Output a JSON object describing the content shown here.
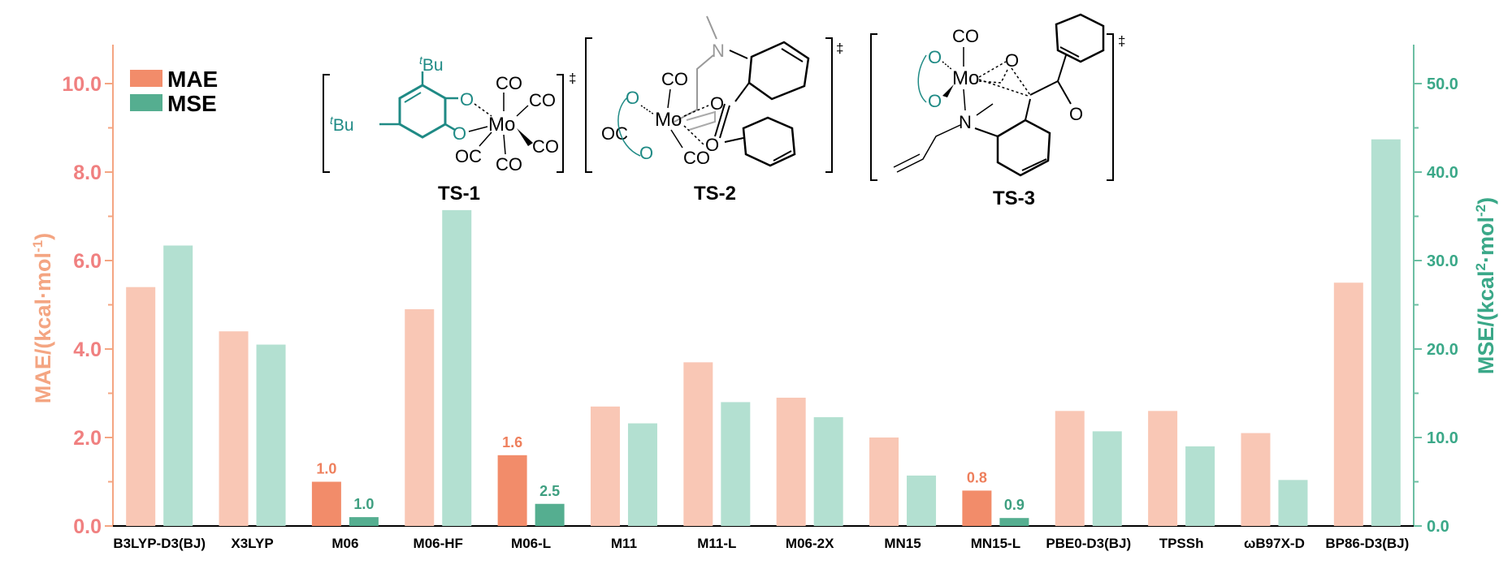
{
  "chart_data": {
    "type": "bar",
    "categories": [
      "B3LYP-D3(BJ)",
      "X3LYP",
      "M06",
      "M06-HF",
      "M06-L",
      "M11",
      "M11-L",
      "M06-2X",
      "MN15",
      "MN15-L",
      "PBE0-D3(BJ)",
      "TPSSh",
      "ωB97X-D",
      "BP86-D3(BJ)"
    ],
    "series": [
      {
        "name": "MAE",
        "axis": "left",
        "values": [
          5.4,
          4.4,
          1.0,
          4.9,
          1.6,
          2.7,
          3.7,
          2.9,
          2.0,
          0.8,
          2.6,
          2.6,
          2.1,
          5.5
        ],
        "highlighted": [
          false,
          false,
          true,
          false,
          true,
          false,
          false,
          false,
          false,
          true,
          false,
          false,
          false,
          false
        ],
        "data_labels": [
          "",
          "",
          "1.0",
          "",
          "1.6",
          "",
          "",
          "",
          "",
          "0.8",
          "",
          "",
          "",
          ""
        ]
      },
      {
        "name": "MSE",
        "axis": "right",
        "values": [
          31.7,
          20.5,
          1.0,
          35.7,
          2.5,
          11.6,
          14.0,
          12.3,
          5.7,
          0.9,
          10.7,
          9.0,
          5.2,
          43.7
        ],
        "highlighted": [
          false,
          false,
          true,
          false,
          true,
          false,
          false,
          false,
          false,
          true,
          false,
          false,
          false,
          false
        ],
        "data_labels": [
          "",
          "",
          "1.0",
          "",
          "2.5",
          "",
          "",
          "",
          "",
          "0.9",
          "",
          "",
          "",
          ""
        ]
      }
    ],
    "y_left": {
      "label_main": "MAE/(kcal·mol",
      "label_sup": "-1",
      "label_end": ")",
      "ylim": [
        0,
        11
      ],
      "ticks": [
        "0.0",
        "2.0",
        "4.0",
        "6.0",
        "8.0",
        "10.0"
      ],
      "tick_values": [
        0,
        2,
        4,
        6,
        8,
        10
      ]
    },
    "y_right": {
      "label_main": "MSE/(kcal",
      "label_sup1": "2",
      "label_mid": "·mol",
      "label_sup2": "-2",
      "label_end": ")",
      "ylim": [
        0,
        55
      ],
      "ticks": [
        "0.0",
        "10.0",
        "20.0",
        "30.0",
        "40.0",
        "50.0"
      ],
      "tick_values": [
        0,
        10,
        20,
        30,
        40,
        50
      ]
    },
    "legend": {
      "position": "top-left",
      "entries": [
        "MAE",
        "MSE"
      ]
    },
    "grid": false,
    "colors": {
      "mae_light": "#f9c7b5",
      "mae_dark": "#f28c6a",
      "mse_light": "#b3e0d1",
      "mse_dark": "#55ae90",
      "left_axis": "#f4a582",
      "left_text": "#f08080",
      "right_axis": "#6cbfa3",
      "right_text": "#3aa888",
      "label_mae": "#ee7f5c",
      "label_mse": "#3e9f80"
    }
  },
  "structures": {
    "ts1": {
      "label": "TS-1",
      "tbu_sup": "t",
      "tbu": "Bu",
      "metal": "Mo",
      "o": "O",
      "co": "CO",
      "oc": "OC",
      "dagger": "‡"
    },
    "ts2": {
      "label": "TS-2",
      "n": "N",
      "metal": "Mo",
      "o": "O",
      "co": "CO",
      "oc": "OC",
      "dagger": "‡"
    },
    "ts3": {
      "label": "TS-3",
      "n": "N",
      "metal": "Mo",
      "o": "O",
      "co": "CO",
      "dagger": "‡"
    }
  }
}
